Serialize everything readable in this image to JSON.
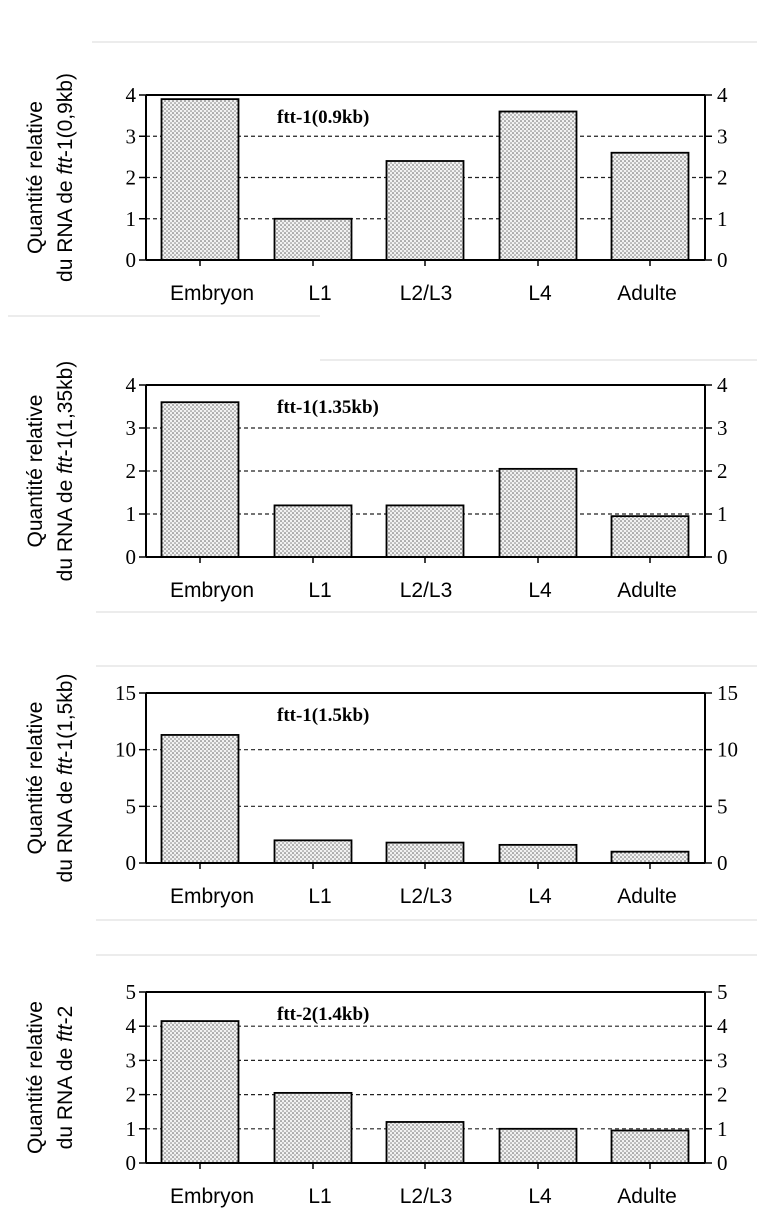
{
  "chart_data": [
    {
      "type": "bar",
      "title": "ftt-1(0.9kb)",
      "ylabel_line1": "Quantité relative",
      "ylabel_pre": "du RNA de ",
      "ylabel_italic": "ftt",
      "ylabel_post": "-1(0,9kb)",
      "categories": [
        "Embryon",
        "L1",
        "L2/L3",
        "L4",
        "Adulte"
      ],
      "values": [
        3.9,
        1.0,
        2.4,
        3.6,
        2.6
      ],
      "ylim": [
        0,
        4
      ],
      "yticks": [
        0,
        1,
        2,
        3,
        4
      ],
      "grid": "dashed-horizontal",
      "right_axis": true
    },
    {
      "type": "bar",
      "title": "ftt-1(1.35kb)",
      "ylabel_line1": "Quantité relative",
      "ylabel_pre": "du RNA de ",
      "ylabel_italic": "ftt",
      "ylabel_post": "-1(1,35kb)",
      "categories": [
        "Embryon",
        "L1",
        "L2/L3",
        "L4",
        "Adulte"
      ],
      "values": [
        3.6,
        1.2,
        1.2,
        2.05,
        0.95
      ],
      "ylim": [
        0,
        4
      ],
      "yticks": [
        0,
        1,
        2,
        3,
        4
      ],
      "grid": "dashed-horizontal",
      "right_axis": true
    },
    {
      "type": "bar",
      "title": "ftt-1(1.5kb)",
      "ylabel_line1": "Quantité relative",
      "ylabel_pre": "du RNA de ",
      "ylabel_italic": "ftt",
      "ylabel_post": "-1(1,5kb)",
      "categories": [
        "Embryon",
        "L1",
        "L2/L3",
        "L4",
        "Adulte"
      ],
      "values": [
        11.3,
        2.0,
        1.8,
        1.6,
        1.0
      ],
      "ylim": [
        0,
        15
      ],
      "yticks": [
        0,
        5,
        10,
        15
      ],
      "grid": "dashed-horizontal",
      "right_axis": true
    },
    {
      "type": "bar",
      "title": "ftt-2(1.4kb)",
      "ylabel_line1": "Quantité relative",
      "ylabel_pre": "du RNA de ",
      "ylabel_italic": "ftt",
      "ylabel_post": "-2",
      "categories": [
        "Embryon",
        "L1",
        "L2/L3",
        "L4",
        "Adulte"
      ],
      "values": [
        4.15,
        2.05,
        1.2,
        1.0,
        0.95
      ],
      "ylim": [
        0,
        5
      ],
      "yticks": [
        0,
        1,
        2,
        3,
        4,
        5
      ],
      "grid": "dashed-horizontal",
      "right_axis": true
    }
  ]
}
